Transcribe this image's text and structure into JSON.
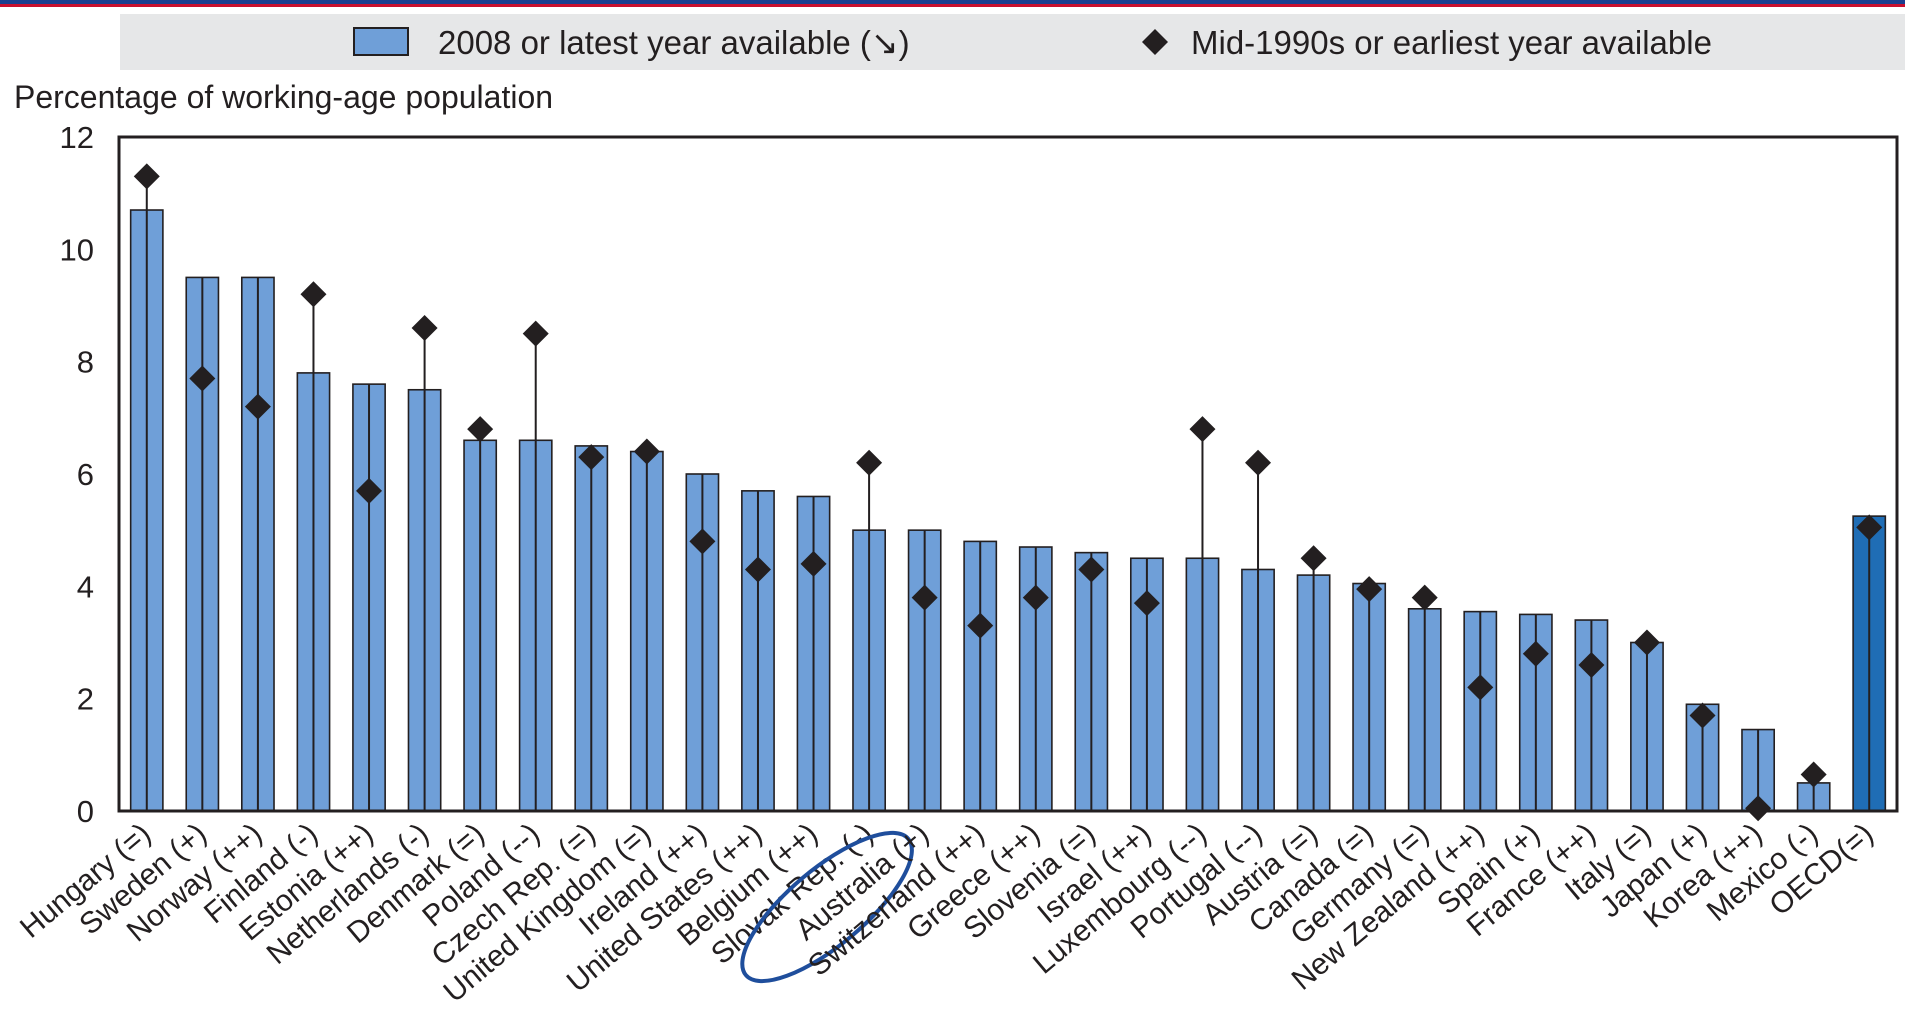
{
  "colors": {
    "bar": "#6f9fd8",
    "bar_highlight": "#1f6db5",
    "bar_edge": "#231f20",
    "marker": "#231f20",
    "grid": "#ffffff",
    "plot_bg": "#ffffff",
    "legend_bg": "#e6e7e8",
    "top_rule": "#1a3f8f",
    "top_rule_red": "#c8102e",
    "annotation_circle": "#1f4e9c"
  },
  "chart_data": {
    "type": "bar",
    "ylabel": "Percentage of working-age population",
    "ylim": [
      0,
      12
    ],
    "yticks": [
      "0",
      "2",
      "4",
      "6",
      "8",
      "10",
      "12"
    ],
    "grid": true,
    "legend": {
      "placement": "top",
      "bar_label": "2008 or latest year available (↘)",
      "marker_label": "Mid-1990s or earliest year available"
    },
    "highlight_category": "OECD(=)",
    "annotated_category": "Slovak Rep. (-)",
    "categories": [
      "Hungary (=)",
      "Sweden (+)",
      "Norway (++)",
      "Finland (-)",
      "Estonia (++)",
      "Netherlands (-)",
      "Denmark (=)",
      "Poland (--)",
      "Czech Rep. (=)",
      "United Kingdom (=)",
      "Ireland (++)",
      "United States (++)",
      "Belgium (++)",
      "Slovak Rep. (-)",
      "Australia (+)",
      "Switzerland (++)",
      "Greece (++)",
      "Slovenia (=)",
      "Israel (++)",
      "Luxembourg (--)",
      "Portugal (--)",
      "Austria (=)",
      "Canada (=)",
      "Germany (=)",
      "New Zealand (++)",
      "Spain (+)",
      "France (++)",
      "Italy (=)",
      "Japan (+)",
      "Korea (++)",
      "Mexico (-)",
      "OECD(=)"
    ],
    "series": [
      {
        "name": "2008 or latest year available (↘)",
        "kind": "bar",
        "values": [
          10.7,
          9.5,
          9.5,
          7.8,
          7.6,
          7.5,
          6.6,
          6.6,
          6.5,
          6.4,
          6.0,
          5.7,
          5.6,
          5.0,
          5.0,
          4.8,
          4.7,
          4.6,
          4.5,
          4.5,
          4.3,
          4.2,
          4.05,
          3.6,
          3.55,
          3.5,
          3.4,
          3.0,
          1.9,
          1.45,
          0.5,
          5.25
        ]
      },
      {
        "name": "Mid-1990s or earliest year available",
        "kind": "marker",
        "values": [
          11.3,
          7.7,
          7.2,
          9.2,
          5.7,
          8.6,
          6.8,
          8.5,
          6.3,
          6.4,
          4.8,
          4.3,
          4.4,
          6.2,
          3.8,
          3.3,
          3.8,
          4.3,
          3.7,
          6.8,
          6.2,
          4.5,
          3.95,
          3.8,
          2.2,
          2.8,
          2.6,
          3.0,
          1.7,
          0.05,
          0.65,
          5.05
        ]
      }
    ]
  }
}
